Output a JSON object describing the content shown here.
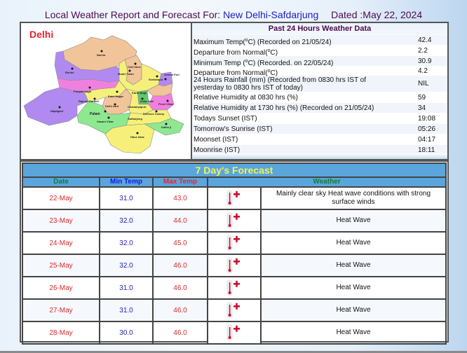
{
  "header": {
    "title_prefix": "Local Weather Report and Forecast For:",
    "station": "New Delhi-Safdarjung",
    "dated": "Dated :May 22, 2024"
  },
  "map": {
    "title": "Delhi",
    "places": [
      "Narela",
      "Rohini",
      "Civil lines",
      "Model Town",
      "Seelampur",
      "Shahdara",
      "Seema Puri",
      "Punjabi bagh",
      "Patel Nagar",
      "Karol Bagh",
      "Daryaganj",
      "Vivek Vihar",
      "Rajouri Garden",
      "Delhi cant",
      "India Gate",
      "Preet Vihar",
      "Najafgarh",
      "Chanakyapuri",
      "Defence Colony",
      "Palam",
      "Vasant Vihar",
      "Safdarjung",
      "Kalka ji",
      "Hauz khas"
    ]
  },
  "past24": {
    "title": "Past 24 Hours Weather Data",
    "rows": [
      {
        "label": "Maximum Temp(°C) (Recorded on 21/05/24)",
        "value": "42.4"
      },
      {
        "label": "Departure from Normal(°C)",
        "value": "2.2"
      },
      {
        "label": "Minimum Temp (°C) (Recorded. on 22/05/24)",
        "value": "30.9"
      },
      {
        "label": "Departure from Normal(°C)",
        "value": "4.2"
      },
      {
        "label": "24 Hours Rainfall (mm) (Recorded from 0830 hrs IST of yesterday to 0830 hrs IST of today)",
        "value": "NIL"
      },
      {
        "label": "Relative Humidity at 0830 hrs (%)",
        "value": "59"
      },
      {
        "label": "Relative Humidity at 1730 hrs (%) (Recorded on 21/05/24)",
        "value": "34"
      },
      {
        "label": "Todays Sunset (IST)",
        "value": "19:08"
      },
      {
        "label": "Tomorrow's Sunrise (IST)",
        "value": "05:26"
      },
      {
        "label": "Moonset (IST)",
        "value": "04:17"
      },
      {
        "label": "Moonrise (IST)",
        "value": "18:11"
      }
    ]
  },
  "forecast": {
    "title": "7 Day's Forecast",
    "columns": {
      "date": "Date",
      "min": "Min Temp",
      "max": "Max Temp",
      "weather": "Weather"
    },
    "icon": "thermometer-hot-icon",
    "rows": [
      {
        "date": "22-May",
        "min": "31.0",
        "max": "43.0",
        "weather": "Mainly clear sky Heat wave conditions with strong surface winds"
      },
      {
        "date": "23-May",
        "min": "32.0",
        "max": "44.0",
        "weather": "Heat Wave"
      },
      {
        "date": "24-May",
        "min": "32.0",
        "max": "45.0",
        "weather": "Heat Wave"
      },
      {
        "date": "25-May",
        "min": "32.0",
        "max": "46.0",
        "weather": "Heat Wave"
      },
      {
        "date": "26-May",
        "min": "31.0",
        "max": "46.0",
        "weather": "Heat Wave"
      },
      {
        "date": "27-May",
        "min": "31.0",
        "max": "46.0",
        "weather": "Heat Wave"
      },
      {
        "date": "28-May",
        "min": "30.0",
        "max": "46.0",
        "weather": "Heat Wave"
      }
    ]
  },
  "colors": {
    "title_purple": "#4b0a4f",
    "station_blue": "#1c1cc8",
    "forecast_header_bg": "#5aa6dc",
    "forecast_title_yellow": "#f2f25a",
    "date_red": "#d52b2b",
    "min_blue": "#2323b0"
  }
}
